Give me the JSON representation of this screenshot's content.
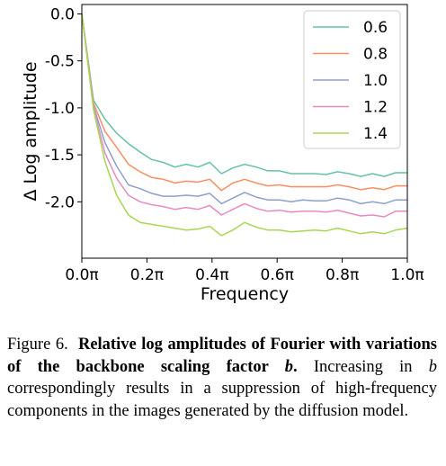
{
  "chart_data": {
    "type": "line",
    "xlabel": "Frequency",
    "ylabel": "Δ Log amplitude",
    "xlim": [
      0,
      1
    ],
    "ylim": [
      -2.6,
      0.1
    ],
    "xticks": [
      0,
      0.2,
      0.4,
      0.6,
      0.8,
      1.0
    ],
    "xtick_labels": [
      "0.0π",
      "0.2π",
      "0.4π",
      "0.6π",
      "0.8π",
      "1.0π"
    ],
    "yticks": [
      0,
      -0.5,
      -1.0,
      -1.5,
      -2.0
    ],
    "ytick_labels": [
      "0.0",
      "-0.5",
      "-1.0",
      "-1.5",
      "-2.0"
    ],
    "legend_position": "top-right",
    "grid": false,
    "x": [
      0,
      0.036,
      0.071,
      0.107,
      0.143,
      0.179,
      0.214,
      0.25,
      0.286,
      0.321,
      0.357,
      0.393,
      0.429,
      0.464,
      0.5,
      0.536,
      0.571,
      0.607,
      0.643,
      0.679,
      0.714,
      0.75,
      0.786,
      0.821,
      0.857,
      0.893,
      0.929,
      0.964,
      1.0
    ],
    "series": [
      {
        "name": "0.6",
        "color": "#66c2a5",
        "values": [
          0.0,
          -0.92,
          -1.12,
          -1.27,
          -1.38,
          -1.47,
          -1.55,
          -1.58,
          -1.63,
          -1.6,
          -1.63,
          -1.58,
          -1.7,
          -1.64,
          -1.6,
          -1.63,
          -1.67,
          -1.67,
          -1.7,
          -1.7,
          -1.7,
          -1.71,
          -1.68,
          -1.7,
          -1.73,
          -1.7,
          -1.73,
          -1.69,
          -1.69
        ]
      },
      {
        "name": "0.8",
        "color": "#fc8d62",
        "values": [
          0.0,
          -0.95,
          -1.25,
          -1.42,
          -1.6,
          -1.68,
          -1.74,
          -1.76,
          -1.8,
          -1.78,
          -1.79,
          -1.76,
          -1.88,
          -1.8,
          -1.76,
          -1.8,
          -1.83,
          -1.82,
          -1.84,
          -1.84,
          -1.84,
          -1.84,
          -1.82,
          -1.84,
          -1.87,
          -1.85,
          -1.87,
          -1.83,
          -1.83
        ]
      },
      {
        "name": "1.0",
        "color": "#8da0cb",
        "values": [
          0.0,
          -0.98,
          -1.37,
          -1.62,
          -1.82,
          -1.86,
          -1.91,
          -1.94,
          -1.94,
          -1.93,
          -1.94,
          -1.91,
          -2.02,
          -1.96,
          -1.9,
          -1.95,
          -1.98,
          -1.98,
          -2.0,
          -1.98,
          -1.99,
          -1.99,
          -1.96,
          -1.98,
          -2.02,
          -2.0,
          -2.02,
          -1.98,
          -1.98
        ]
      },
      {
        "name": "1.2",
        "color": "#e78ac3",
        "values": [
          0.0,
          -1.0,
          -1.48,
          -1.75,
          -1.93,
          -2.0,
          -2.03,
          -2.05,
          -2.08,
          -2.06,
          -2.08,
          -2.04,
          -2.14,
          -2.08,
          -2.02,
          -2.07,
          -2.1,
          -2.09,
          -2.11,
          -2.1,
          -2.1,
          -2.11,
          -2.09,
          -2.12,
          -2.15,
          -2.14,
          -2.16,
          -2.1,
          -2.1
        ]
      },
      {
        "name": "1.4",
        "color": "#a6d854",
        "values": [
          0.0,
          -1.02,
          -1.57,
          -1.93,
          -2.14,
          -2.22,
          -2.24,
          -2.26,
          -2.28,
          -2.3,
          -2.29,
          -2.26,
          -2.36,
          -2.3,
          -2.22,
          -2.27,
          -2.3,
          -2.3,
          -2.32,
          -2.31,
          -2.3,
          -2.31,
          -2.28,
          -2.31,
          -2.34,
          -2.32,
          -2.34,
          -2.3,
          -2.28
        ]
      }
    ]
  },
  "caption": {
    "label": "Figure 6.",
    "bold": "Relative log amplitudes of Fourier with variations of the backbone scaling factor",
    "bold_var": "b",
    "bold_end": ".",
    "text_1": "Increasing in",
    "text_var": "b",
    "text_2": "correspondingly results in a suppression of high-frequency components in the images generated by the diffusion model."
  }
}
